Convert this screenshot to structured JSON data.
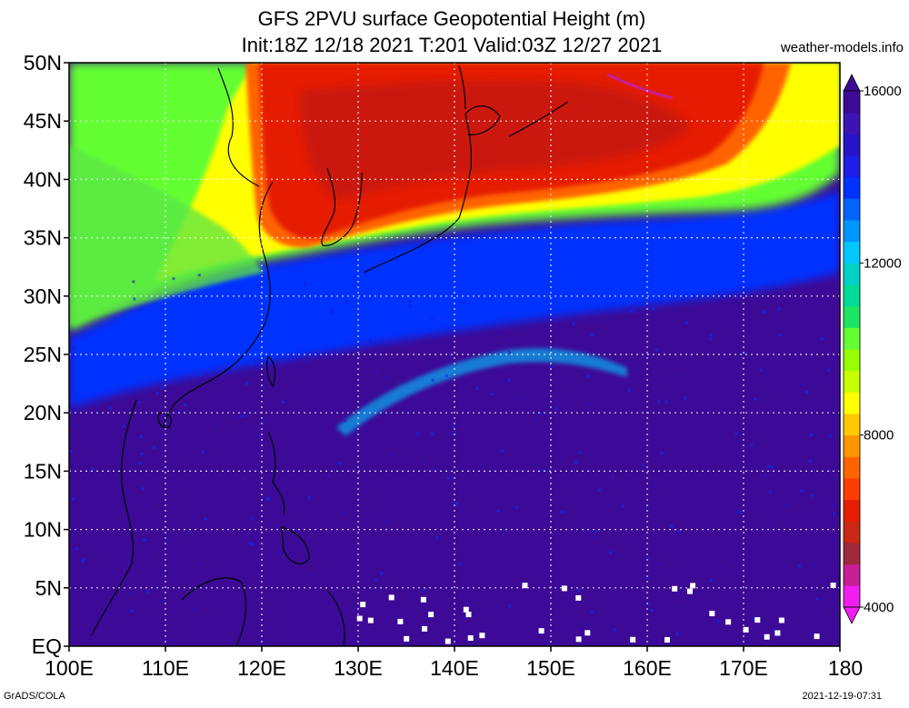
{
  "title": {
    "line1": "GFS 2PVU surface Geopotential Height (m)",
    "line2": "Init:18Z 12/18 2021 T:201 Valid:03Z 12/27 2021"
  },
  "credit": "weather-models.info",
  "footer": {
    "left": "GrADS/COLA",
    "right": "2021-12-19-07:31"
  },
  "axes": {
    "lat_labels": [
      "EQ",
      "5N",
      "10N",
      "15N",
      "20N",
      "25N",
      "30N",
      "35N",
      "40N",
      "45N",
      "50N"
    ],
    "lat_values": [
      0,
      5,
      10,
      15,
      20,
      25,
      30,
      35,
      40,
      45,
      50
    ],
    "lon_labels": [
      "100E",
      "110E",
      "120E",
      "130E",
      "140E",
      "150E",
      "160E",
      "170E",
      "180"
    ],
    "lon_values": [
      100,
      110,
      120,
      130,
      140,
      150,
      160,
      170,
      180
    ],
    "lat_range": [
      0,
      50
    ],
    "lon_range": [
      100,
      180
    ]
  },
  "colorbar": {
    "labels": [
      "4000",
      "8000",
      "12000",
      "16000"
    ],
    "values": [
      4000,
      8000,
      12000,
      16000
    ],
    "colors": [
      "#f01ef0",
      "#c81e96",
      "#a0283c",
      "#c82814",
      "#e61e00",
      "#ff3c00",
      "#ff6400",
      "#ff9600",
      "#ffc800",
      "#ffff00",
      "#c8ff00",
      "#96ff00",
      "#64ff32",
      "#1ee664",
      "#00dc96",
      "#00d2c8",
      "#00c8ff",
      "#0096ff",
      "#0064ff",
      "#0032ff",
      "#1e1ee6",
      "#2814c8",
      "#3c14b4",
      "#3c0a96"
    ]
  },
  "field_colors": {
    "tropical": "#3c0a96",
    "tropical_bright": "#2814c8",
    "blue_band": "#0032ff",
    "jet_cyan": "#00c8ff",
    "jet_green": "#64ff32",
    "jet_yellow": "#ffff00",
    "polar_red": "#e61e00",
    "polar_deep": "#b4141e",
    "polar_pink": "#c81e96",
    "continent_green": "#5ae646"
  }
}
